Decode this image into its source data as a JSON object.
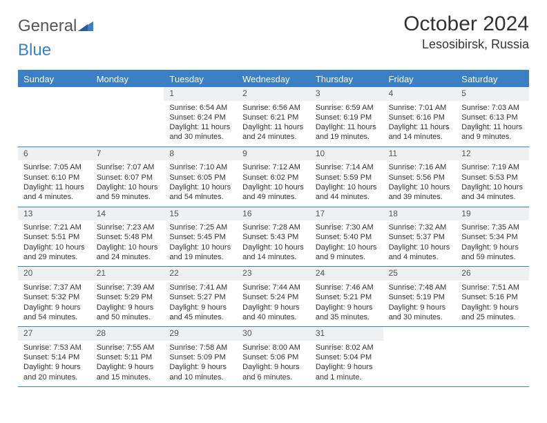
{
  "logo": {
    "text1": "General",
    "text2": "Blue"
  },
  "title": "October 2024",
  "location": "Lesosibirsk, Russia",
  "colors": {
    "accent": "#3b7fc4",
    "header_bg": "#3b7fc4",
    "daynum_bg": "#eef0f2",
    "text": "#333333"
  },
  "dayNames": [
    "Sunday",
    "Monday",
    "Tuesday",
    "Wednesday",
    "Thursday",
    "Friday",
    "Saturday"
  ],
  "weeks": [
    [
      {
        "day": "",
        "sunrise": "",
        "sunset": "",
        "daylight": ""
      },
      {
        "day": "",
        "sunrise": "",
        "sunset": "",
        "daylight": ""
      },
      {
        "day": "1",
        "sunrise": "Sunrise: 6:54 AM",
        "sunset": "Sunset: 6:24 PM",
        "daylight": "Daylight: 11 hours and 30 minutes."
      },
      {
        "day": "2",
        "sunrise": "Sunrise: 6:56 AM",
        "sunset": "Sunset: 6:21 PM",
        "daylight": "Daylight: 11 hours and 24 minutes."
      },
      {
        "day": "3",
        "sunrise": "Sunrise: 6:59 AM",
        "sunset": "Sunset: 6:19 PM",
        "daylight": "Daylight: 11 hours and 19 minutes."
      },
      {
        "day": "4",
        "sunrise": "Sunrise: 7:01 AM",
        "sunset": "Sunset: 6:16 PM",
        "daylight": "Daylight: 11 hours and 14 minutes."
      },
      {
        "day": "5",
        "sunrise": "Sunrise: 7:03 AM",
        "sunset": "Sunset: 6:13 PM",
        "daylight": "Daylight: 11 hours and 9 minutes."
      }
    ],
    [
      {
        "day": "6",
        "sunrise": "Sunrise: 7:05 AM",
        "sunset": "Sunset: 6:10 PM",
        "daylight": "Daylight: 11 hours and 4 minutes."
      },
      {
        "day": "7",
        "sunrise": "Sunrise: 7:07 AM",
        "sunset": "Sunset: 6:07 PM",
        "daylight": "Daylight: 10 hours and 59 minutes."
      },
      {
        "day": "8",
        "sunrise": "Sunrise: 7:10 AM",
        "sunset": "Sunset: 6:05 PM",
        "daylight": "Daylight: 10 hours and 54 minutes."
      },
      {
        "day": "9",
        "sunrise": "Sunrise: 7:12 AM",
        "sunset": "Sunset: 6:02 PM",
        "daylight": "Daylight: 10 hours and 49 minutes."
      },
      {
        "day": "10",
        "sunrise": "Sunrise: 7:14 AM",
        "sunset": "Sunset: 5:59 PM",
        "daylight": "Daylight: 10 hours and 44 minutes."
      },
      {
        "day": "11",
        "sunrise": "Sunrise: 7:16 AM",
        "sunset": "Sunset: 5:56 PM",
        "daylight": "Daylight: 10 hours and 39 minutes."
      },
      {
        "day": "12",
        "sunrise": "Sunrise: 7:19 AM",
        "sunset": "Sunset: 5:53 PM",
        "daylight": "Daylight: 10 hours and 34 minutes."
      }
    ],
    [
      {
        "day": "13",
        "sunrise": "Sunrise: 7:21 AM",
        "sunset": "Sunset: 5:51 PM",
        "daylight": "Daylight: 10 hours and 29 minutes."
      },
      {
        "day": "14",
        "sunrise": "Sunrise: 7:23 AM",
        "sunset": "Sunset: 5:48 PM",
        "daylight": "Daylight: 10 hours and 24 minutes."
      },
      {
        "day": "15",
        "sunrise": "Sunrise: 7:25 AM",
        "sunset": "Sunset: 5:45 PM",
        "daylight": "Daylight: 10 hours and 19 minutes."
      },
      {
        "day": "16",
        "sunrise": "Sunrise: 7:28 AM",
        "sunset": "Sunset: 5:43 PM",
        "daylight": "Daylight: 10 hours and 14 minutes."
      },
      {
        "day": "17",
        "sunrise": "Sunrise: 7:30 AM",
        "sunset": "Sunset: 5:40 PM",
        "daylight": "Daylight: 10 hours and 9 minutes."
      },
      {
        "day": "18",
        "sunrise": "Sunrise: 7:32 AM",
        "sunset": "Sunset: 5:37 PM",
        "daylight": "Daylight: 10 hours and 4 minutes."
      },
      {
        "day": "19",
        "sunrise": "Sunrise: 7:35 AM",
        "sunset": "Sunset: 5:34 PM",
        "daylight": "Daylight: 9 hours and 59 minutes."
      }
    ],
    [
      {
        "day": "20",
        "sunrise": "Sunrise: 7:37 AM",
        "sunset": "Sunset: 5:32 PM",
        "daylight": "Daylight: 9 hours and 54 minutes."
      },
      {
        "day": "21",
        "sunrise": "Sunrise: 7:39 AM",
        "sunset": "Sunset: 5:29 PM",
        "daylight": "Daylight: 9 hours and 50 minutes."
      },
      {
        "day": "22",
        "sunrise": "Sunrise: 7:41 AM",
        "sunset": "Sunset: 5:27 PM",
        "daylight": "Daylight: 9 hours and 45 minutes."
      },
      {
        "day": "23",
        "sunrise": "Sunrise: 7:44 AM",
        "sunset": "Sunset: 5:24 PM",
        "daylight": "Daylight: 9 hours and 40 minutes."
      },
      {
        "day": "24",
        "sunrise": "Sunrise: 7:46 AM",
        "sunset": "Sunset: 5:21 PM",
        "daylight": "Daylight: 9 hours and 35 minutes."
      },
      {
        "day": "25",
        "sunrise": "Sunrise: 7:48 AM",
        "sunset": "Sunset: 5:19 PM",
        "daylight": "Daylight: 9 hours and 30 minutes."
      },
      {
        "day": "26",
        "sunrise": "Sunrise: 7:51 AM",
        "sunset": "Sunset: 5:16 PM",
        "daylight": "Daylight: 9 hours and 25 minutes."
      }
    ],
    [
      {
        "day": "27",
        "sunrise": "Sunrise: 7:53 AM",
        "sunset": "Sunset: 5:14 PM",
        "daylight": "Daylight: 9 hours and 20 minutes."
      },
      {
        "day": "28",
        "sunrise": "Sunrise: 7:55 AM",
        "sunset": "Sunset: 5:11 PM",
        "daylight": "Daylight: 9 hours and 15 minutes."
      },
      {
        "day": "29",
        "sunrise": "Sunrise: 7:58 AM",
        "sunset": "Sunset: 5:09 PM",
        "daylight": "Daylight: 9 hours and 10 minutes."
      },
      {
        "day": "30",
        "sunrise": "Sunrise: 8:00 AM",
        "sunset": "Sunset: 5:06 PM",
        "daylight": "Daylight: 9 hours and 6 minutes."
      },
      {
        "day": "31",
        "sunrise": "Sunrise: 8:02 AM",
        "sunset": "Sunset: 5:04 PM",
        "daylight": "Daylight: 9 hours and 1 minute."
      },
      {
        "day": "",
        "sunrise": "",
        "sunset": "",
        "daylight": ""
      },
      {
        "day": "",
        "sunrise": "",
        "sunset": "",
        "daylight": ""
      }
    ]
  ]
}
